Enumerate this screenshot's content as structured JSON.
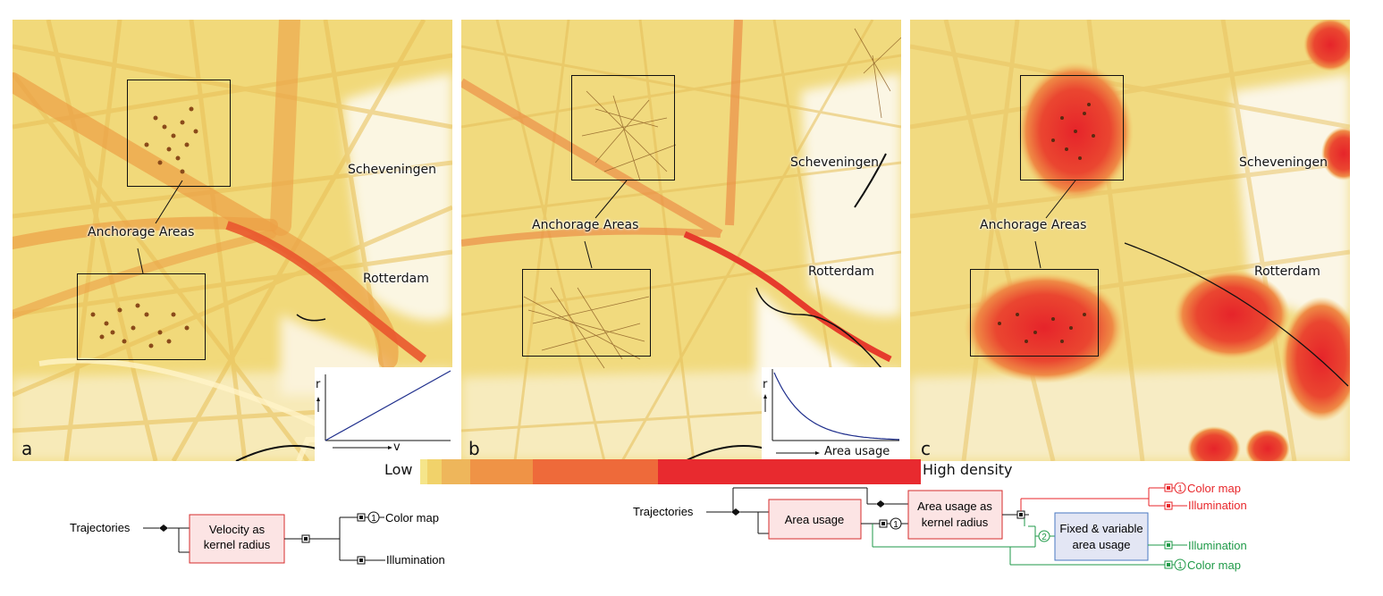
{
  "panels": [
    {
      "letter": "a",
      "labels": {
        "anchorage": "Anchorage Areas",
        "scheveningen": "Scheveningen",
        "rotterdam": "Rotterdam"
      },
      "inset": {
        "y_axis": "r",
        "x_axis": "v",
        "curve": "linear"
      }
    },
    {
      "letter": "b",
      "labels": {
        "anchorage": "Anchorage Areas",
        "scheveningen": "Scheveningen",
        "rotterdam": "Rotterdam"
      },
      "inset": {
        "y_axis": "r",
        "x_axis": "Area usage",
        "curve": "decreasing"
      }
    },
    {
      "letter": "c",
      "labels": {
        "anchorage": "Anchorage Areas",
        "scheveningen": "Scheveningen",
        "rotterdam": "Rotterdam"
      }
    }
  ],
  "legend": {
    "low": "Low",
    "high": "High density",
    "colors": [
      "#f5e58a",
      "#f1d26a",
      "#eeb65b",
      "#ef9346",
      "#ee6a3a",
      "#e82a2f"
    ]
  },
  "diagram_left": {
    "input": "Trajectories",
    "node": [
      "Velocity as",
      "kernel radius"
    ],
    "out_color": "Color map",
    "out_illum": "Illumination",
    "port": "1"
  },
  "diagram_right": {
    "input": "Trajectories",
    "node_area": "Area usage",
    "node_kernel": [
      "Area usage as",
      "kernel radius"
    ],
    "node_fixed": [
      "Fixed & variable",
      "area usage"
    ],
    "red_color": "Color map",
    "red_illum": "Illumination",
    "green_illum": "Illumination",
    "green_color": "Color map",
    "port1": "1",
    "port2": "2",
    "red": "#e8262a",
    "green": "#1f9a48"
  }
}
